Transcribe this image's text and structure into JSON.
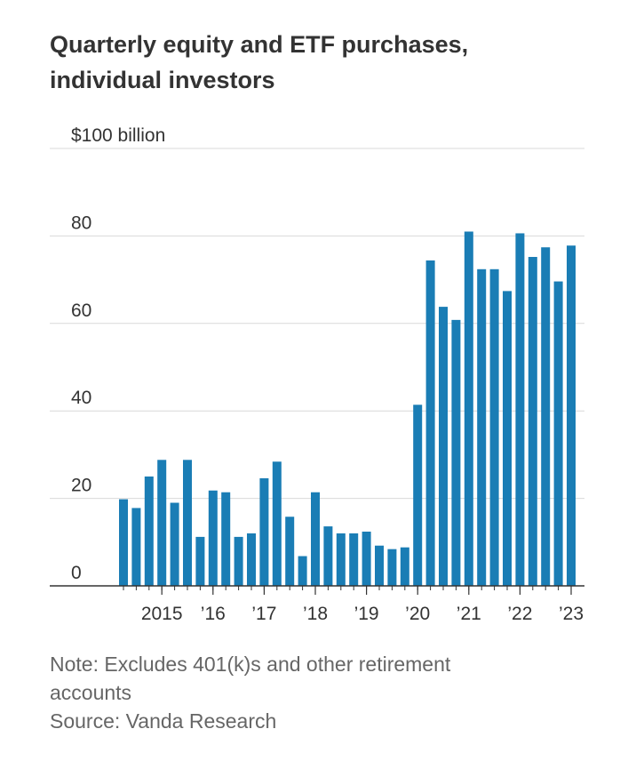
{
  "title_lines": [
    "Quarterly equity and ETF purchases,",
    "individual investors"
  ],
  "note_lines": [
    "Note: Excludes 401(k)s and other retirement",
    "accounts"
  ],
  "source": "Source: Vanda Research",
  "colors": {
    "bar": "#1a7db5",
    "grid": "#d9d9d9",
    "axis": "#333333",
    "text": "#333333",
    "note": "#666666"
  },
  "chart_data": {
    "type": "bar",
    "title": "Quarterly equity and ETF purchases, individual investors",
    "ylabel": "",
    "xlabel": "",
    "ylim": [
      0,
      100
    ],
    "yticks": [
      {
        "value": 0,
        "label": "0"
      },
      {
        "value": 20,
        "label": "20"
      },
      {
        "value": 40,
        "label": "40"
      },
      {
        "value": 60,
        "label": "60"
      },
      {
        "value": 80,
        "label": "80"
      },
      {
        "value": 100,
        "label": "$100 billion"
      }
    ],
    "grid": true,
    "categories": [
      "2014 Q2",
      "2014 Q3",
      "2014 Q4",
      "2015 Q1",
      "2015 Q2",
      "2015 Q3",
      "2015 Q4",
      "2016 Q1",
      "2016 Q2",
      "2016 Q3",
      "2016 Q4",
      "2017 Q1",
      "2017 Q2",
      "2017 Q3",
      "2017 Q4",
      "2018 Q1",
      "2018 Q2",
      "2018 Q3",
      "2018 Q4",
      "2019 Q1",
      "2019 Q2",
      "2019 Q3",
      "2019 Q4",
      "2020 Q1",
      "2020 Q2",
      "2020 Q3",
      "2020 Q4",
      "2021 Q1",
      "2021 Q2",
      "2021 Q3",
      "2021 Q4",
      "2022 Q1",
      "2022 Q2",
      "2022 Q3",
      "2022 Q4",
      "2023 Q1"
    ],
    "values": [
      19.8,
      17.8,
      25.0,
      28.8,
      19.0,
      28.8,
      11.2,
      21.8,
      21.4,
      11.2,
      12.0,
      24.6,
      28.4,
      15.8,
      6.8,
      21.4,
      13.6,
      12.0,
      12.0,
      12.4,
      9.2,
      8.4,
      8.8,
      41.4,
      74.4,
      63.8,
      60.8,
      81.0,
      72.4,
      72.4,
      67.4,
      80.6,
      75.2,
      77.4,
      69.6,
      77.8
    ],
    "xticks": [
      {
        "index": 3,
        "label": "2015"
      },
      {
        "index": 7,
        "label": "’16"
      },
      {
        "index": 11,
        "label": "’17"
      },
      {
        "index": 15,
        "label": "’18"
      },
      {
        "index": 19,
        "label": "’19"
      },
      {
        "index": 23,
        "label": "’20"
      },
      {
        "index": 27,
        "label": "’21"
      },
      {
        "index": 31,
        "label": "’22"
      },
      {
        "index": 35,
        "label": "’23"
      }
    ]
  }
}
